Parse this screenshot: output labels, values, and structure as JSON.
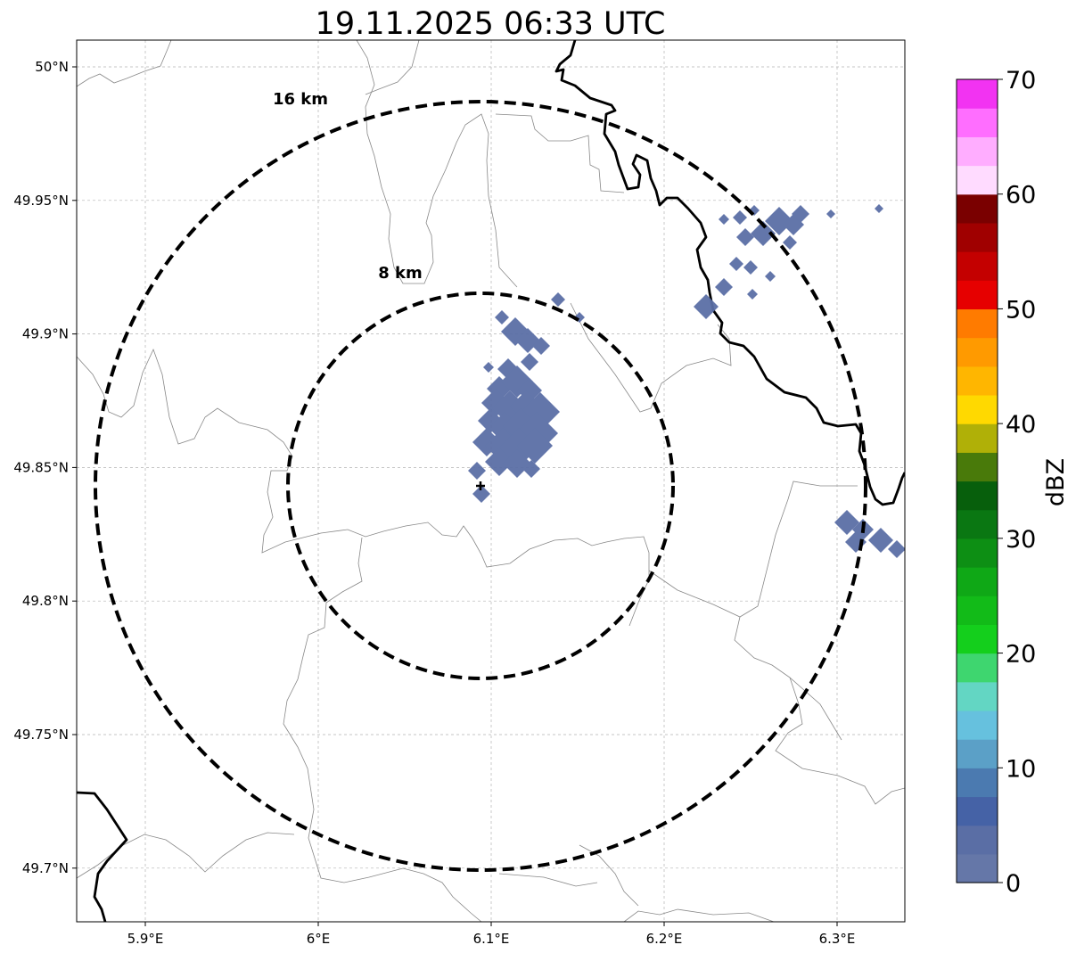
{
  "title": "19.11.2025 06:33 UTC",
  "map": {
    "lon_range": [
      5.86,
      6.34
    ],
    "lat_range": [
      49.68,
      50.01
    ],
    "lon_ticks": [
      {
        "value": 5.9,
        "label": "5.9°E"
      },
      {
        "value": 6.0,
        "label": "6°E"
      },
      {
        "value": 6.1,
        "label": "6.1°E"
      },
      {
        "value": 6.2,
        "label": "6.2°E"
      },
      {
        "value": 6.3,
        "label": "6.3°E"
      }
    ],
    "lat_ticks": [
      {
        "value": 50.0,
        "label": "50°N"
      },
      {
        "value": 49.95,
        "label": "49.95°N"
      },
      {
        "value": 49.9,
        "label": "49.9°N"
      },
      {
        "value": 49.85,
        "label": "49.85°N"
      },
      {
        "value": 49.8,
        "label": "49.8°N"
      },
      {
        "value": 49.75,
        "label": "49.75°N"
      },
      {
        "value": 49.7,
        "label": "49.7°N"
      }
    ],
    "radar_center": {
      "lon": 6.094,
      "lat": 49.843
    },
    "range_rings": [
      {
        "label": "8 km",
        "radius_km": 8
      },
      {
        "label": "16 km",
        "radius_km": 16
      }
    ],
    "grid": true
  },
  "colorbar": {
    "label": "dBZ",
    "min": 0,
    "max": 70,
    "ticks": [
      "0",
      "10",
      "20",
      "30",
      "40",
      "50",
      "60",
      "70"
    ],
    "colors": [
      "#6577a8",
      "#5a6ea5",
      "#4562a6",
      "#4b7ab0",
      "#5ba0c7",
      "#66c1de",
      "#63d6c3",
      "#3ed66f",
      "#14cf1c",
      "#12bb18",
      "#0fa816",
      "#0d8f14",
      "#0a7712",
      "#075f0c",
      "#497a0a",
      "#b0b007",
      "#ffd900",
      "#ffb600",
      "#ff9a00",
      "#ff7b00",
      "#e60000",
      "#c40000",
      "#a00000",
      "#7a0000",
      "#ffdbff",
      "#ffadff",
      "#ff6eff",
      "#f233f2"
    ]
  },
  "colors": {
    "echo": "#5b6fa6",
    "border_major": "#000000",
    "border_minor": "#888888",
    "grid": "#b3b3b3"
  }
}
